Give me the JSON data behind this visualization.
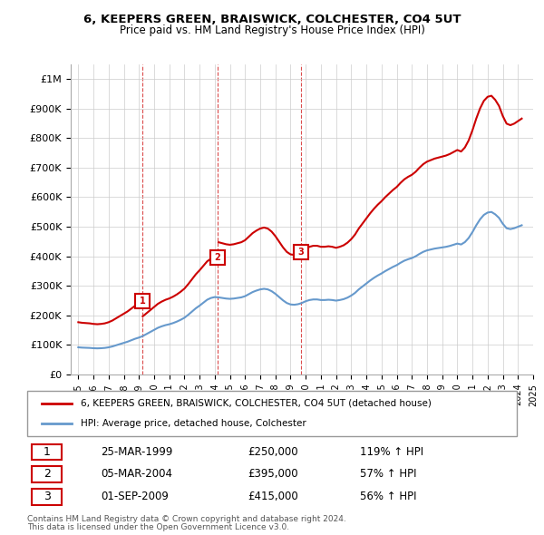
{
  "title1": "6, KEEPERS GREEN, BRAISWICK, COLCHESTER, CO4 5UT",
  "title2": "Price paid vs. HM Land Registry's House Price Index (HPI)",
  "hpi_years": [
    1995,
    1995.25,
    1995.5,
    1995.75,
    1996,
    1996.25,
    1996.5,
    1996.75,
    1997,
    1997.25,
    1997.5,
    1997.75,
    1998,
    1998.25,
    1998.5,
    1998.75,
    1999,
    1999.25,
    1999.5,
    1999.75,
    2000,
    2000.25,
    2000.5,
    2000.75,
    2001,
    2001.25,
    2001.5,
    2001.75,
    2002,
    2002.25,
    2002.5,
    2002.75,
    2003,
    2003.25,
    2003.5,
    2003.75,
    2004,
    2004.25,
    2004.5,
    2004.75,
    2005,
    2005.25,
    2005.5,
    2005.75,
    2006,
    2006.25,
    2006.5,
    2006.75,
    2007,
    2007.25,
    2007.5,
    2007.75,
    2008,
    2008.25,
    2008.5,
    2008.75,
    2009,
    2009.25,
    2009.5,
    2009.75,
    2010,
    2010.25,
    2010.5,
    2010.75,
    2011,
    2011.25,
    2011.5,
    2011.75,
    2012,
    2012.25,
    2012.5,
    2012.75,
    2013,
    2013.25,
    2013.5,
    2013.75,
    2014,
    2014.25,
    2014.5,
    2014.75,
    2015,
    2015.25,
    2015.5,
    2015.75,
    2016,
    2016.25,
    2016.5,
    2016.75,
    2017,
    2017.25,
    2017.5,
    2017.75,
    2018,
    2018.25,
    2018.5,
    2018.75,
    2019,
    2019.25,
    2019.5,
    2019.75,
    2020,
    2020.25,
    2020.5,
    2020.75,
    2021,
    2021.25,
    2021.5,
    2021.75,
    2022,
    2022.25,
    2022.5,
    2022.75,
    2023,
    2023.25,
    2023.5,
    2023.75,
    2024,
    2024.25
  ],
  "hpi_values": [
    92000,
    91000,
    90500,
    90000,
    89000,
    88500,
    89000,
    90000,
    92000,
    95000,
    99000,
    103000,
    107000,
    111000,
    116000,
    121000,
    125000,
    130000,
    137000,
    144000,
    151000,
    158000,
    163000,
    167000,
    170000,
    174000,
    179000,
    185000,
    192000,
    202000,
    213000,
    224000,
    233000,
    243000,
    253000,
    259000,
    262000,
    261000,
    259000,
    257000,
    256000,
    257000,
    259000,
    261000,
    265000,
    272000,
    279000,
    284000,
    288000,
    290000,
    288000,
    282000,
    273000,
    262000,
    251000,
    242000,
    237000,
    236000,
    238000,
    242000,
    248000,
    252000,
    254000,
    254000,
    252000,
    252000,
    253000,
    252000,
    250000,
    252000,
    255000,
    260000,
    267000,
    276000,
    288000,
    298000,
    308000,
    318000,
    327000,
    335000,
    342000,
    350000,
    357000,
    364000,
    370000,
    378000,
    385000,
    390000,
    394000,
    400000,
    408000,
    415000,
    420000,
    423000,
    426000,
    428000,
    430000,
    432000,
    435000,
    439000,
    443000,
    440000,
    448000,
    462000,
    482000,
    505000,
    525000,
    540000,
    548000,
    550000,
    542000,
    530000,
    510000,
    495000,
    492000,
    495000,
    500000,
    505000
  ],
  "property_years": [
    1999.23,
    2004.17,
    2009.67
  ],
  "property_values": [
    250000,
    395000,
    415000
  ],
  "property_labels": [
    "1",
    "2",
    "3"
  ],
  "sale_dates": [
    "25-MAR-1999",
    "05-MAR-2004",
    "01-SEP-2009"
  ],
  "sale_prices": [
    "£250,000",
    "£395,000",
    "£415,000"
  ],
  "sale_hpi": [
    "119% ↑ HPI",
    "57% ↑ HPI",
    "56% ↑ HPI"
  ],
  "hpi_line_color": "#6699cc",
  "property_line_color": "#cc0000",
  "marker_color": "#cc0000",
  "marker_border_color": "#cc0000",
  "ylabel_ticks": [
    0,
    100000,
    200000,
    300000,
    400000,
    500000,
    600000,
    700000,
    800000,
    900000,
    1000000
  ],
  "ylabel_labels": [
    "£0",
    "£100K",
    "£200K",
    "£300K",
    "£400K",
    "£500K",
    "£600K",
    "£700K",
    "£800K",
    "£900K",
    "£1M"
  ],
  "xlim": [
    1994.5,
    2025.0
  ],
  "ylim": [
    0,
    1050000
  ],
  "grid_color": "#cccccc",
  "background_color": "#ffffff",
  "footnote1": "Contains HM Land Registry data © Crown copyright and database right 2024.",
  "footnote2": "This data is licensed under the Open Government Licence v3.0.",
  "legend_line1": "6, KEEPERS GREEN, BRAISWICK, COLCHESTER, CO4 5UT (detached house)",
  "legend_line2": "HPI: Average price, detached house, Colchester"
}
